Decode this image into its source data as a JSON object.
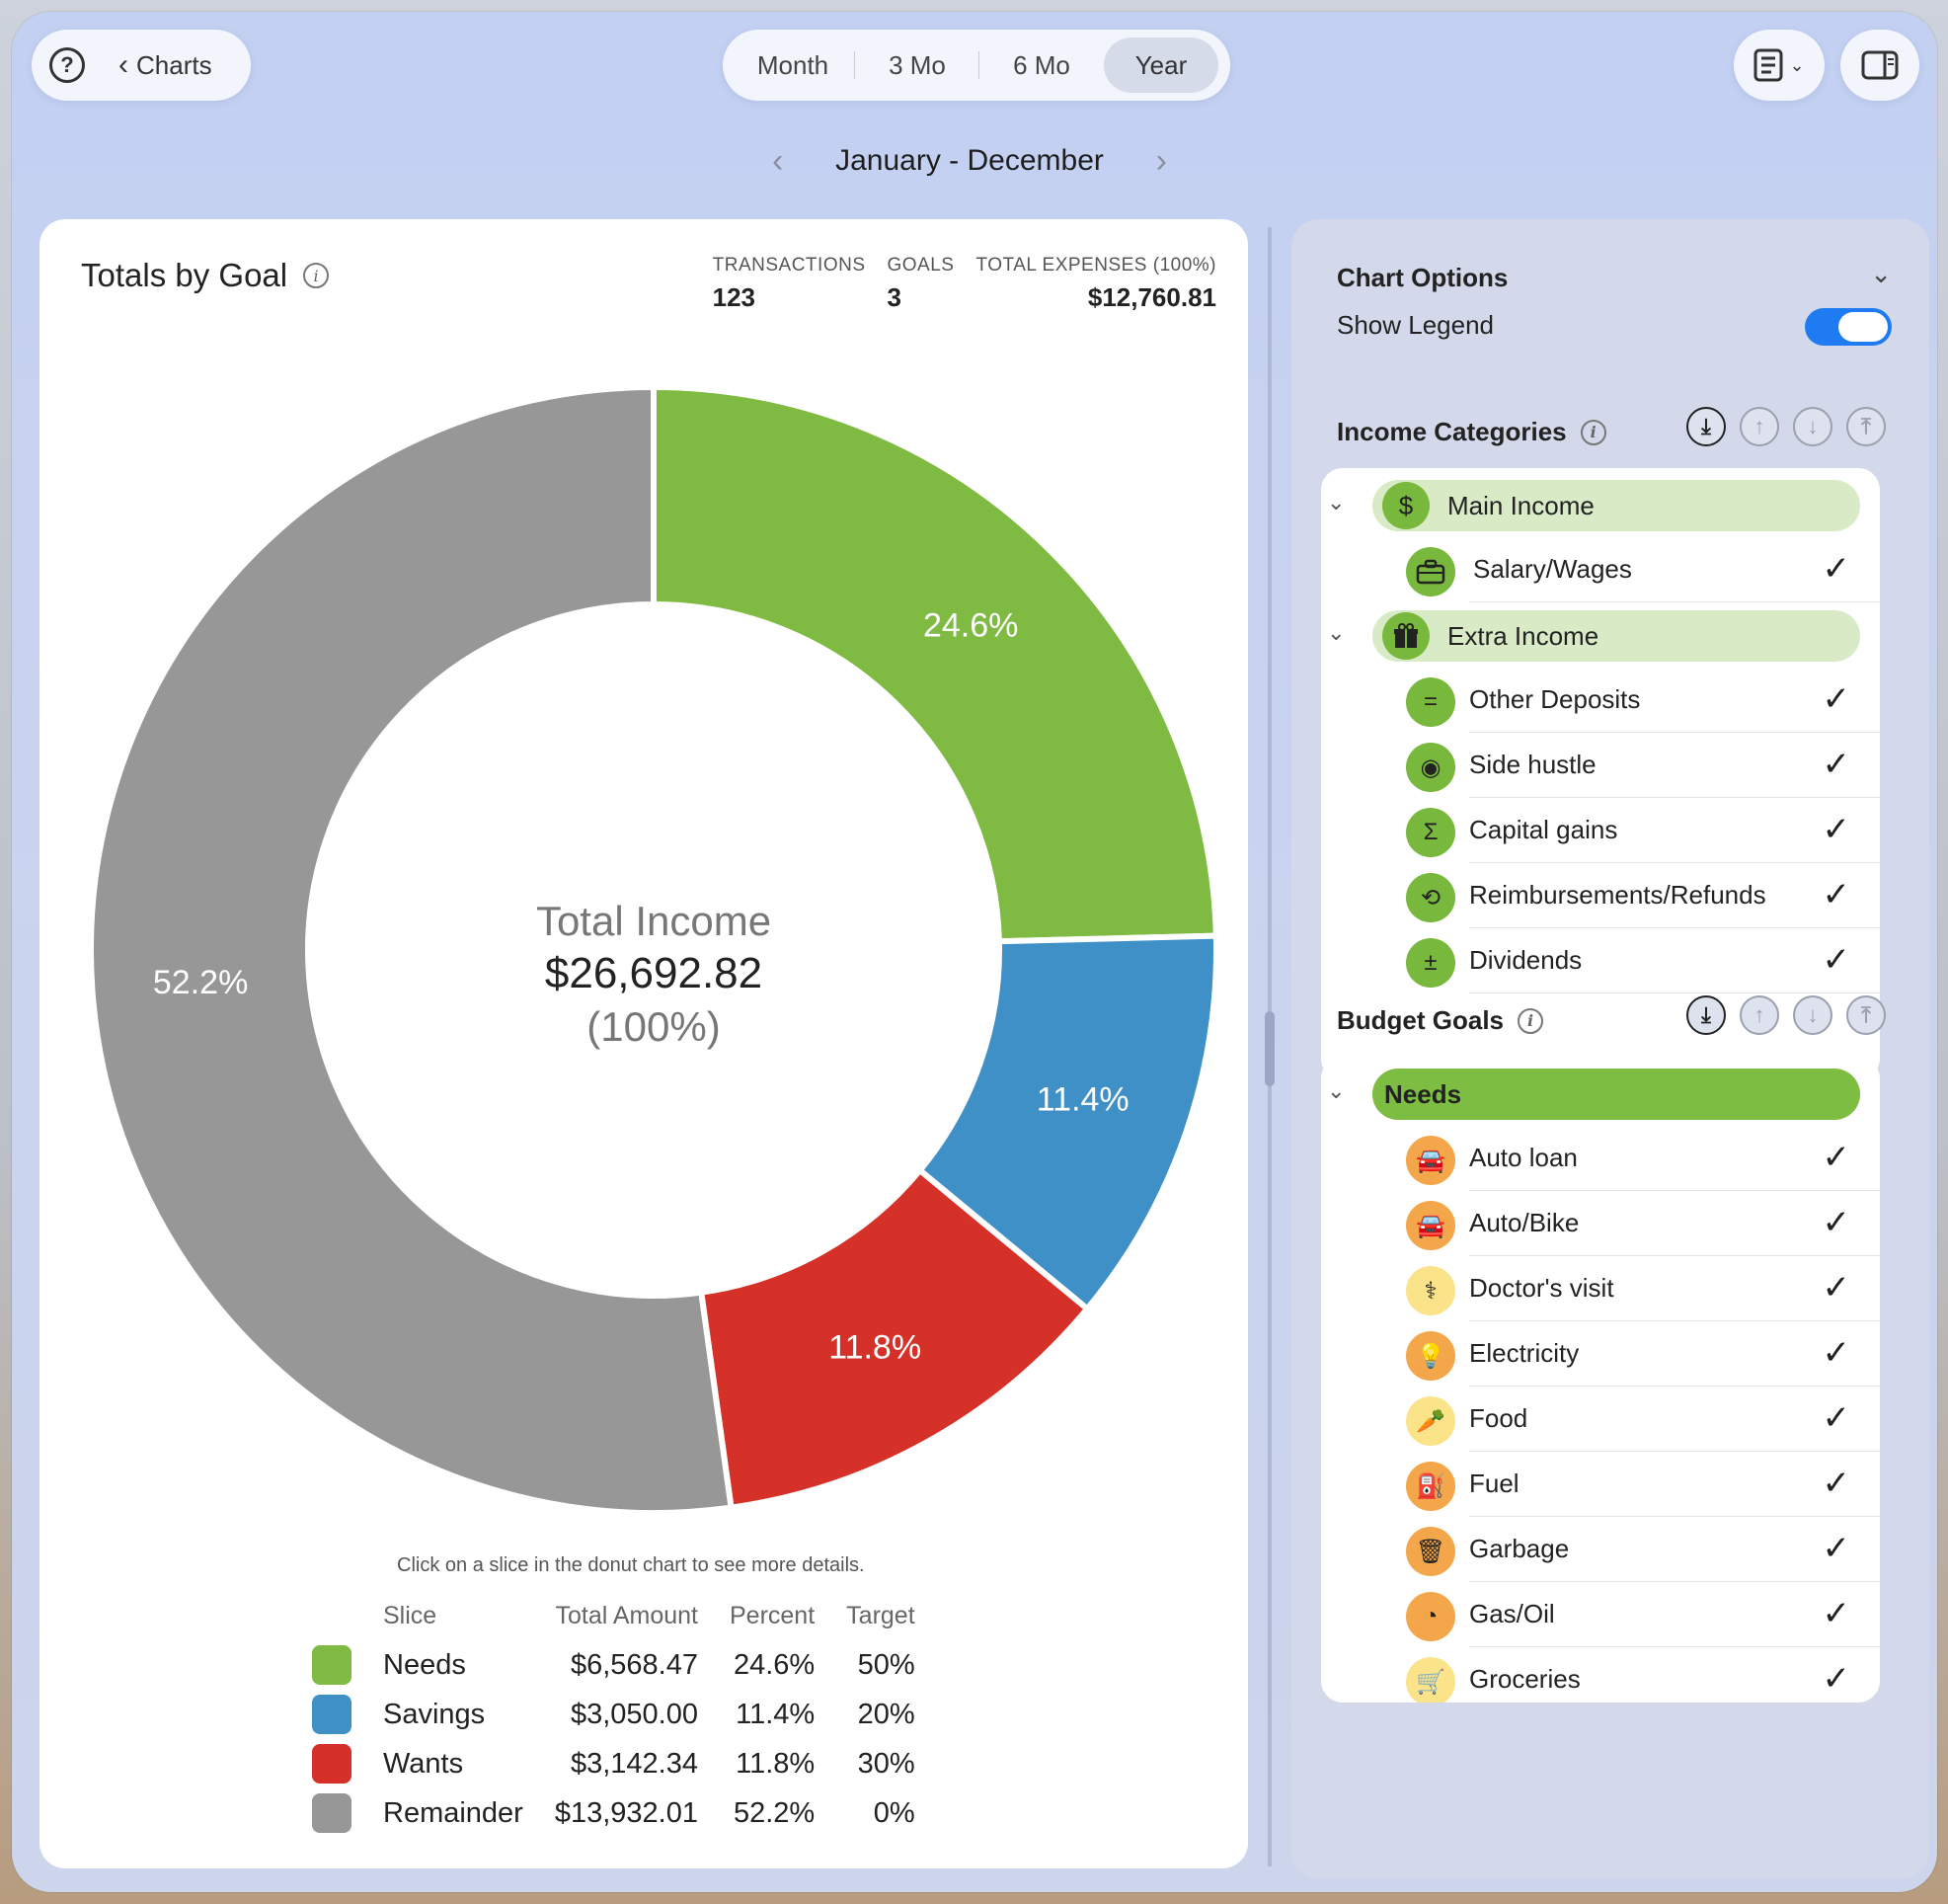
{
  "toolbar": {
    "help_icon": "?",
    "back_label": "Charts",
    "segments": [
      "Month",
      "3 Mo",
      "6 Mo",
      "Year"
    ],
    "active_segment": "Year"
  },
  "date_range": "January - December",
  "card": {
    "title": "Totals by Goal",
    "stats": [
      {
        "label": "TRANSACTIONS",
        "value": "123"
      },
      {
        "label": "GOALS",
        "value": "3"
      },
      {
        "label": "TOTAL EXPENSES (100%)",
        "value": "$12,760.81"
      }
    ],
    "center_label": "Total Income",
    "center_value": "$26,692.82",
    "center_pct": "(100%)",
    "hint": "Click on a slice in the donut chart to see more details.",
    "columns": [
      "Slice",
      "Total Amount",
      "Percent",
      "Target"
    ]
  },
  "chart_data": {
    "type": "pie",
    "center": "Total Income $26,692.82 (100%)",
    "slices": [
      {
        "name": "Needs",
        "amount": "$6,568.47",
        "value": 24.6,
        "label": "24.6%",
        "target": "50%",
        "color": "#7fba42"
      },
      {
        "name": "Savings",
        "amount": "$3,050.00",
        "value": 11.4,
        "label": "11.4%",
        "target": "20%",
        "color": "#4090c8"
      },
      {
        "name": "Wants",
        "amount": "$3,142.34",
        "value": 11.8,
        "label": "11.8%",
        "target": "30%",
        "color": "#d63128"
      },
      {
        "name": "Remainder",
        "amount": "$13,932.01",
        "value": 52.2,
        "label": "52.2%",
        "target": "0%",
        "color": "#979797"
      }
    ]
  },
  "panel": {
    "options_title": "Chart Options",
    "show_legend_label": "Show Legend",
    "show_legend": true,
    "income_title": "Income Categories",
    "income_groups": [
      {
        "name": "Main Income",
        "icon": "$",
        "items": [
          {
            "label": "Salary/Wages",
            "icon": "briefcase-icon"
          }
        ]
      },
      {
        "name": "Extra Income",
        "icon": "gift-icon",
        "items": [
          {
            "label": "Other Deposits",
            "icon": "equals-icon"
          },
          {
            "label": "Side hustle",
            "icon": "lifebuoy-icon"
          },
          {
            "label": "Capital gains",
            "icon": "sigma-icon"
          },
          {
            "label": "Reimbursements/Refunds",
            "icon": "refund-icon"
          },
          {
            "label": "Dividends",
            "icon": "plus-minus-icon"
          }
        ]
      }
    ],
    "budget_title": "Budget Goals",
    "budget_group": "Needs",
    "budget_items": [
      {
        "label": "Auto loan",
        "icon": "car-icon",
        "tone": "o"
      },
      {
        "label": "Auto/Bike",
        "icon": "car-icon",
        "tone": "o"
      },
      {
        "label": "Doctor's visit",
        "icon": "stethoscope-icon",
        "tone": "y"
      },
      {
        "label": "Electricity",
        "icon": "lightbulb-icon",
        "tone": "o"
      },
      {
        "label": "Food",
        "icon": "carrot-icon",
        "tone": "y"
      },
      {
        "label": "Fuel",
        "icon": "fuel-pump-icon",
        "tone": "o"
      },
      {
        "label": "Garbage",
        "icon": "trash-icon",
        "tone": "o"
      },
      {
        "label": "Gas/Oil",
        "icon": "gauge-icon",
        "tone": "o"
      },
      {
        "label": "Groceries",
        "icon": "cart-icon",
        "tone": "y"
      }
    ]
  }
}
